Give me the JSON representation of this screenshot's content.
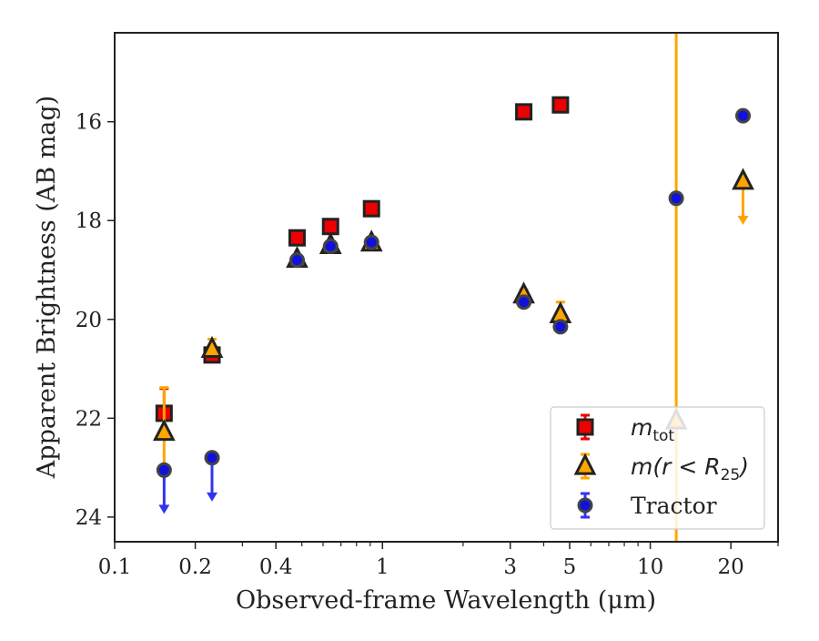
{
  "chart_data": {
    "type": "scatter",
    "title": "",
    "xlabel": "Observed-frame Wavelength (μm)",
    "ylabel": "Apparent Brightness (AB mag)",
    "x_scale": "log",
    "y_inverted": true,
    "xlim": [
      0.1,
      30
    ],
    "ylim": [
      24.5,
      14.2
    ],
    "x_ticks": [
      {
        "value": 0.1,
        "label": "0.1"
      },
      {
        "value": 0.2,
        "label": "0.2"
      },
      {
        "value": 0.4,
        "label": "0.4"
      },
      {
        "value": 1,
        "label": "1"
      },
      {
        "value": 3,
        "label": "3"
      },
      {
        "value": 5,
        "label": "5"
      },
      {
        "value": 10,
        "label": "10"
      },
      {
        "value": 20,
        "label": "20"
      }
    ],
    "y_ticks": [
      {
        "value": 16,
        "label": "16"
      },
      {
        "value": 18,
        "label": "18"
      },
      {
        "value": 20,
        "label": "20"
      },
      {
        "value": 22,
        "label": "22"
      },
      {
        "value": 24,
        "label": "24"
      }
    ],
    "grid": false,
    "legend_position": "bottom-right",
    "vertical_line": {
      "x": 12.5,
      "color": "#ffa500"
    },
    "series": [
      {
        "name": "m_tot",
        "legend_main": "m",
        "legend_sub": "tot",
        "marker": "square",
        "face_color": "#ee0000",
        "edge_color": "#222222",
        "error_color": "#ee0000",
        "points": [
          {
            "x": 0.153,
            "y": 21.9,
            "err_up": 0.5,
            "err_down": 0
          },
          {
            "x": 0.231,
            "y": 20.72,
            "err_up": 0.1,
            "err_down": 0.1
          },
          {
            "x": 0.48,
            "y": 18.35
          },
          {
            "x": 0.64,
            "y": 18.12
          },
          {
            "x": 0.91,
            "y": 17.76
          },
          {
            "x": 3.37,
            "y": 15.8
          },
          {
            "x": 4.62,
            "y": 15.66
          }
        ]
      },
      {
        "name": "m(r < R25)",
        "legend_main": "m(r < R",
        "legend_sub": "25",
        "legend_tail": ")",
        "marker": "triangle",
        "face_color": "#ffa500",
        "edge_color": "#222222",
        "error_color": "#ffa500",
        "points": [
          {
            "x": 0.153,
            "y": 22.28,
            "err_up": 0.9,
            "err_down": 0.7
          },
          {
            "x": 0.231,
            "y": 20.6,
            "err_up": 0.2,
            "err_down": 0
          },
          {
            "x": 0.48,
            "y": 18.78
          },
          {
            "x": 0.64,
            "y": 18.5
          },
          {
            "x": 0.91,
            "y": 18.45
          },
          {
            "x": 3.37,
            "y": 19.5,
            "err_up": 0.1,
            "err_down": 0.1
          },
          {
            "x": 4.62,
            "y": 19.9,
            "err_up": 0.25,
            "err_down": 0
          },
          {
            "x": 12.5,
            "y": 22.05
          },
          {
            "x": 22.2,
            "y": 17.2,
            "upper_limit": true,
            "arrow_to": 18.05
          }
        ]
      },
      {
        "name": "Tractor",
        "legend_main": "Tractor",
        "marker": "circle",
        "face_color": "#1111dd",
        "edge_color": "#444444",
        "error_color": "#3333ee",
        "points": [
          {
            "x": 0.153,
            "y": 23.05,
            "upper_limit": true,
            "arrow_to": 23.9
          },
          {
            "x": 0.231,
            "y": 22.8,
            "upper_limit": true,
            "arrow_to": 23.65
          },
          {
            "x": 0.48,
            "y": 18.8
          },
          {
            "x": 0.64,
            "y": 18.52
          },
          {
            "x": 0.91,
            "y": 18.44
          },
          {
            "x": 3.37,
            "y": 19.65
          },
          {
            "x": 4.62,
            "y": 20.15
          },
          {
            "x": 12.5,
            "y": 17.55
          },
          {
            "x": 22.2,
            "y": 15.88
          }
        ]
      }
    ]
  }
}
